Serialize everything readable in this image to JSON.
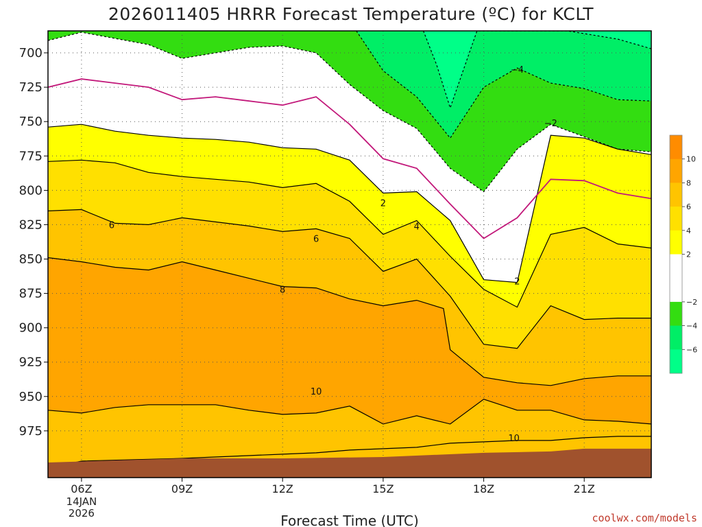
{
  "title": "2026011405 HRRR Forecast Temperature (ºC) for KCLT",
  "x_axis_label": "Forecast Time (UTC)",
  "credit": "coolwx.com/models",
  "colors": {
    "ground": "#a0522d",
    "credit_text": "#c0392b",
    "contour_zero": "#c2187a",
    "contour": "#000000"
  },
  "chart_data": {
    "type": "heatmap",
    "title": "2026011405 HRRR Forecast Temperature (ºC) for KCLT",
    "xlabel": "Forecast Time (UTC)",
    "ylabel": "",
    "y_axis": {
      "unit": "hPa",
      "inverted": true,
      "ticks": [
        700,
        725,
        750,
        775,
        800,
        825,
        850,
        875,
        900,
        925,
        950,
        975
      ],
      "range": [
        1009,
        684
      ]
    },
    "x_axis": {
      "range": [
        "2026-01-14T05:00Z",
        "2026-01-14T23:00Z"
      ],
      "ticks": [
        {
          "time": "2026-01-14T06:00Z",
          "label": "06Z",
          "sub": [
            "14JAN",
            "2026"
          ]
        },
        {
          "time": "2026-01-14T09:00Z",
          "label": "09Z",
          "sub": []
        },
        {
          "time": "2026-01-14T12:00Z",
          "label": "12Z",
          "sub": []
        },
        {
          "time": "2026-01-14T15:00Z",
          "label": "15Z",
          "sub": []
        },
        {
          "time": "2026-01-14T18:00Z",
          "label": "18Z",
          "sub": []
        },
        {
          "time": "2026-01-14T21:00Z",
          "label": "21Z",
          "sub": []
        }
      ]
    },
    "grid": true,
    "color_levels": [
      {
        "min": -8,
        "max": -6,
        "color": "#00ff88"
      },
      {
        "min": -6,
        "max": -4,
        "color": "#00ee66"
      },
      {
        "min": -4,
        "max": -2,
        "color": "#33dd11"
      },
      {
        "min": -2,
        "max": 2,
        "color": "#ffffff"
      },
      {
        "min": 2,
        "max": 4,
        "color": "#ffff00"
      },
      {
        "min": 4,
        "max": 6,
        "color": "#ffe000"
      },
      {
        "min": 6,
        "max": 8,
        "color": "#ffc400"
      },
      {
        "min": 8,
        "max": 10,
        "color": "#ffa500"
      },
      {
        "min": 10,
        "max": 12,
        "color": "#ff8c00"
      }
    ],
    "colorbar_ticks": [
      {
        "value": 10,
        "label": "10"
      },
      {
        "value": 8,
        "label": "8"
      },
      {
        "value": 6,
        "label": "6"
      },
      {
        "value": 4,
        "label": "4"
      },
      {
        "value": 2,
        "label": "2"
      },
      {
        "value": -2,
        "label": "−2"
      },
      {
        "value": -4,
        "label": "−4"
      },
      {
        "value": -6,
        "label": "−6"
      }
    ],
    "times": [
      "2026-01-14T05:00Z",
      "2026-01-14T06:00Z",
      "2026-01-14T07:00Z",
      "2026-01-14T08:00Z",
      "2026-01-14T09:00Z",
      "2026-01-14T10:00Z",
      "2026-01-14T11:00Z",
      "2026-01-14T12:00Z",
      "2026-01-14T13:00Z",
      "2026-01-14T14:00Z",
      "2026-01-14T15:00Z",
      "2026-01-14T16:00Z",
      "2026-01-14T17:00Z",
      "2026-01-14T18:00Z",
      "2026-01-14T19:00Z",
      "2026-01-14T20:00Z",
      "2026-01-14T21:00Z",
      "2026-01-14T22:00Z",
      "2026-01-14T23:00Z"
    ],
    "isotherms": [
      {
        "level": 10,
        "times": [
          5,
          6,
          9,
          12,
          13,
          14,
          15,
          16,
          17,
          18,
          19,
          20,
          21,
          22,
          23
        ],
        "pressure": [
          1002,
          997,
          995,
          992,
          991,
          989,
          988,
          987,
          984,
          983,
          982,
          982,
          980,
          979,
          979
        ]
      },
      {
        "level": 8,
        "times": [
          5,
          6,
          7,
          8,
          9,
          10,
          11,
          12,
          13,
          14,
          15,
          16,
          17,
          18,
          19,
          20,
          21,
          22,
          23
        ],
        "pressure": [
          960,
          962,
          958,
          956,
          956,
          956,
          960,
          963,
          962,
          957,
          970,
          964,
          970,
          952,
          960,
          960,
          967,
          968,
          970
        ]
      },
      {
        "level": 8,
        "times": [
          5,
          6,
          7,
          8,
          9,
          10,
          11,
          12,
          13,
          14,
          15,
          16,
          16.8,
          17,
          18,
          19,
          20,
          21,
          22,
          23
        ],
        "pressure": [
          849,
          852,
          856,
          858,
          852,
          858,
          864,
          870,
          871,
          879,
          884,
          880,
          886,
          916,
          936,
          940,
          942,
          937,
          935,
          935
        ]
      },
      {
        "level": 6,
        "times": [
          5,
          6,
          7,
          8,
          9,
          10,
          11,
          12,
          13,
          14,
          15,
          16,
          17,
          18,
          19,
          20,
          21,
          22,
          23
        ],
        "pressure": [
          815,
          814,
          824,
          825,
          820,
          823,
          826,
          830,
          828,
          835,
          859,
          850,
          877,
          912,
          915,
          884,
          894,
          893,
          893
        ]
      },
      {
        "level": 4,
        "times": [
          5,
          6,
          7,
          8,
          9,
          10,
          11,
          12,
          13,
          14,
          15,
          16,
          17,
          18,
          19,
          20,
          21,
          22,
          23
        ],
        "pressure": [
          779,
          778,
          780,
          787,
          790,
          792,
          794,
          798,
          795,
          808,
          832,
          822,
          848,
          872,
          885,
          832,
          827,
          839,
          842
        ]
      },
      {
        "level": 2,
        "times": [
          5,
          6,
          7,
          8,
          9,
          10,
          11,
          12,
          13,
          14,
          15,
          16,
          17,
          18,
          19,
          20,
          21,
          22,
          23
        ],
        "pressure": [
          754,
          752,
          757,
          760,
          762,
          763,
          765,
          769,
          770,
          778,
          802,
          801,
          822,
          865,
          867,
          760,
          762,
          770,
          774
        ]
      },
      {
        "level": 0,
        "times": [
          5,
          6,
          7,
          8,
          9,
          10,
          11,
          12,
          13,
          14,
          15,
          16,
          17,
          18,
          19,
          20,
          21,
          22,
          23
        ],
        "pressure": [
          725,
          719,
          722,
          725,
          734,
          732,
          735,
          738,
          732,
          752,
          777,
          784,
          810,
          835,
          820,
          792,
          793,
          802,
          806
        ]
      },
      {
        "level": -2,
        "times": [
          5,
          6,
          8,
          9,
          11,
          12,
          13,
          14,
          15,
          16,
          17,
          18,
          19,
          20,
          21,
          22,
          23
        ],
        "pressure": [
          691,
          685,
          694,
          704,
          696,
          695,
          700,
          723,
          742,
          755,
          784,
          801,
          770,
          752,
          761,
          770,
          772
        ]
      },
      {
        "level": -4,
        "times": [
          14.2,
          15,
          16,
          17,
          18,
          19,
          20,
          21,
          22,
          23
        ],
        "pressure": [
          684,
          713,
          732,
          762,
          725,
          711,
          722,
          726,
          734,
          735
        ]
      },
      {
        "level": -6,
        "times": [
          16.2,
          16.6,
          17,
          17.4,
          17.8,
          18.2,
          18.6,
          19.4,
          20.5,
          22,
          23
        ],
        "pressure": [
          684,
          709,
          740,
          712,
          684,
          684,
          684,
          684,
          684,
          690,
          697
        ]
      }
    ],
    "contour_labels": [
      {
        "text": "6",
        "time": 6.9,
        "pressure": 825
      },
      {
        "text": "6",
        "time": 13.0,
        "pressure": 835
      },
      {
        "text": "8",
        "time": 12.0,
        "pressure": 872
      },
      {
        "text": "10",
        "time": 13.0,
        "pressure": 946
      },
      {
        "text": "2",
        "time": 15.0,
        "pressure": 809
      },
      {
        "text": "4",
        "time": 16.0,
        "pressure": 826
      },
      {
        "text": "2",
        "time": 19.0,
        "pressure": 866
      },
      {
        "text": "−4",
        "time": 19.0,
        "pressure": 712
      },
      {
        "text": "−2",
        "time": 20.0,
        "pressure": 751
      },
      {
        "text": "10",
        "time": 18.9,
        "pressure": 980
      }
    ],
    "surface_pressure": {
      "times": [
        5,
        9,
        12,
        15,
        18,
        20,
        21,
        23
      ],
      "pressure": [
        998,
        995,
        995,
        994,
        991,
        990,
        988,
        988
      ]
    }
  }
}
